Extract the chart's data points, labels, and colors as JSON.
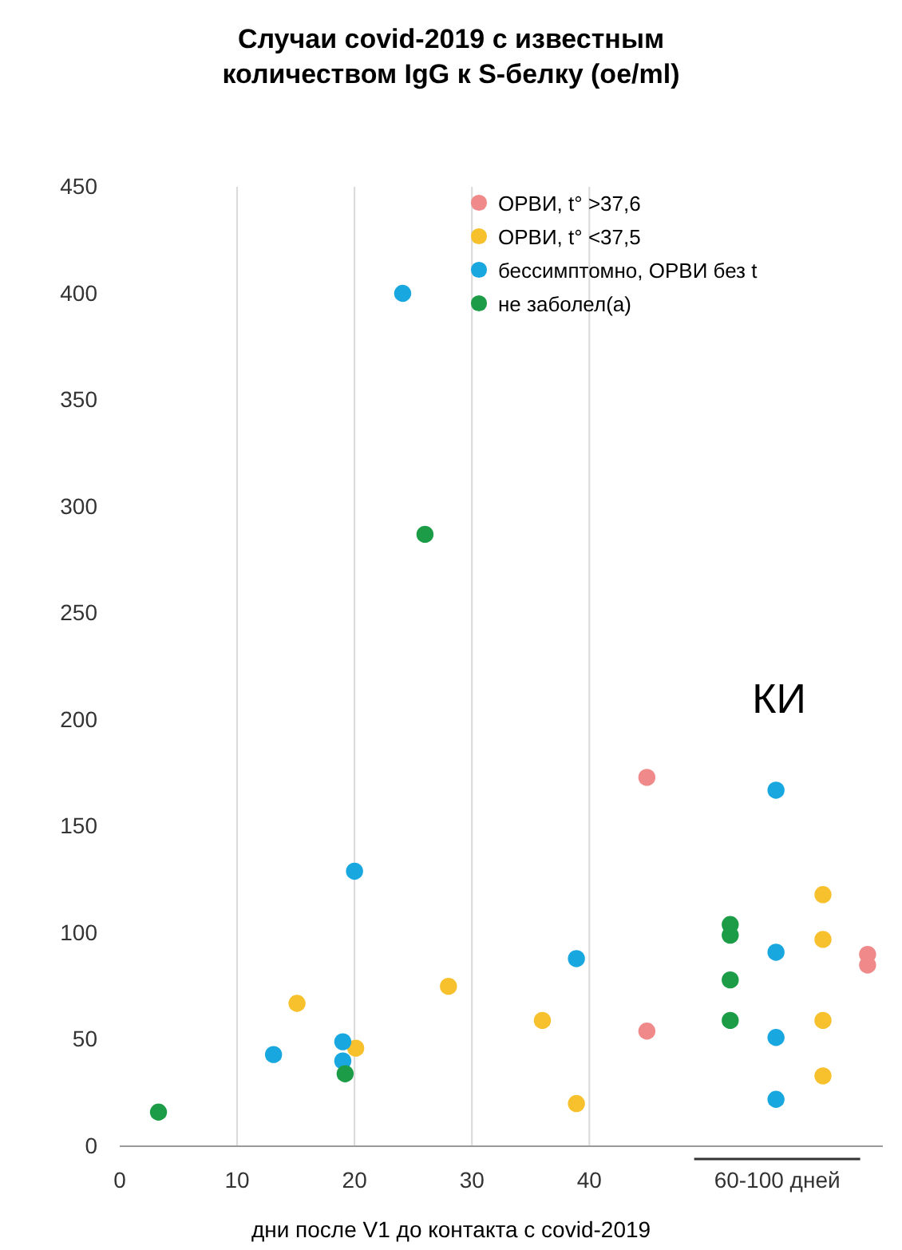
{
  "chart_data": {
    "type": "scatter",
    "title": "Случаи covid-2019 с известным количеством IgG к S-белку (oe/ml)",
    "xlabel": "дни после V1 до контакта с covid-2019",
    "xlim": [
      0,
      65
    ],
    "ylim": [
      0,
      450
    ],
    "xticks": [
      0,
      10,
      20,
      30,
      40,
      {
        "value": 56,
        "label": "60-100 дней"
      }
    ],
    "yticks": [
      0,
      50,
      100,
      150,
      200,
      250,
      300,
      350,
      400,
      450
    ],
    "grid": "x",
    "legend": "top right",
    "marker": "circle",
    "annotations": [
      "КИ"
    ],
    "series": [
      {
        "name": "ОРВИ, t° >37,6",
        "color": "#f0898a",
        "x": [
          44.9,
          44.9,
          63.7,
          63.7
        ],
        "values": [
          173,
          54,
          90,
          85
        ]
      },
      {
        "name": "ОРВИ, t° <37,5",
        "color": "#f6c12c",
        "x": [
          15.1,
          20.1,
          28,
          36,
          38.9,
          59.9,
          59.9,
          59.9,
          59.9
        ],
        "values": [
          67,
          46,
          75,
          59,
          20,
          118,
          97,
          59,
          33
        ]
      },
      {
        "name": "бессимптомно, ОРВИ без t",
        "color": "#19a7e0",
        "x": [
          24.1,
          20,
          13.1,
          19,
          19,
          38.9,
          55.9,
          55.9,
          55.9,
          55.9
        ],
        "values": [
          400,
          129,
          43,
          49,
          40,
          88,
          167,
          91,
          51,
          22
        ]
      },
      {
        "name": "не заболел(а)",
        "color": "#1d9c48",
        "x": [
          3.3,
          26,
          19.2,
          52,
          52,
          52,
          52
        ],
        "values": [
          16,
          287,
          34,
          104,
          99,
          78,
          59
        ]
      }
    ]
  }
}
